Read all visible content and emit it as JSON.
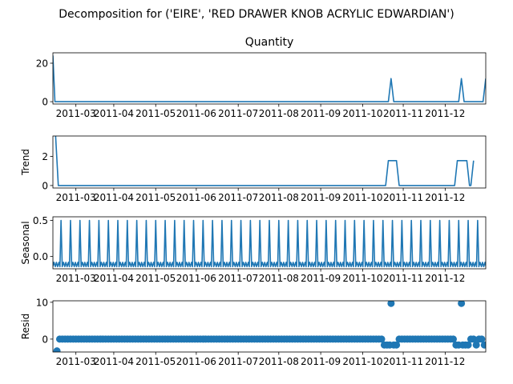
{
  "colors": {
    "series": "#1f77b4",
    "axis": "#000000",
    "background": "#ffffff"
  },
  "chart_data": {
    "type": "decomposition",
    "suptitle": "Decomposition for ('EIRE', 'RED DRAWER KNOB ACRYLIC EDWARDIAN')",
    "x_tick_labels": [
      "2011-03",
      "2011-04",
      "2011-05",
      "2011-06",
      "2011-07",
      "2011-08",
      "2011-09",
      "2011-10",
      "2011-11",
      "2011-12"
    ],
    "x_range_days": [
      0,
      320
    ],
    "x_tick_days": [
      17,
      45,
      76,
      106,
      137,
      167,
      198,
      229,
      259,
      290
    ],
    "panels": [
      {
        "name": "observed",
        "type": "line",
        "title": "Quantity",
        "ylabel": "",
        "ylim": [
          -1.2,
          25.4
        ],
        "yticks": [
          0,
          20
        ],
        "points": [
          [
            0,
            24
          ],
          [
            1.5,
            0
          ],
          [
            248,
            0
          ],
          [
            250,
            12
          ],
          [
            252,
            0
          ],
          [
            300,
            0
          ],
          [
            302,
            12
          ],
          [
            304,
            0
          ],
          [
            318,
            0
          ],
          [
            320,
            12
          ]
        ]
      },
      {
        "name": "trend",
        "type": "line",
        "title": "",
        "ylabel": "Trend",
        "ylim": [
          -0.17,
          3.4
        ],
        "yticks": [
          0,
          2
        ],
        "points": [
          [
            2,
            3.4
          ],
          [
            4,
            0
          ],
          [
            246,
            0
          ],
          [
            248,
            1.71
          ],
          [
            254,
            1.71
          ],
          [
            256,
            0
          ],
          [
            297,
            0
          ],
          [
            299,
            1.71
          ],
          [
            306,
            1.71
          ],
          [
            308,
            0
          ],
          [
            309,
            0
          ],
          [
            311,
            1.71
          ]
        ]
      },
      {
        "name": "seasonal",
        "type": "seasonal",
        "title": "",
        "ylabel": "Seasonal",
        "ylim": [
          -0.17,
          0.55
        ],
        "yticks": [
          0.0,
          0.5
        ],
        "ytick_labels": [
          "0.0",
          "0.5"
        ],
        "period_days": 7,
        "first_peak_day": 6,
        "peak": 0.5,
        "base": -0.08,
        "trough": -0.14
      },
      {
        "name": "resid",
        "type": "scatter",
        "title": "",
        "ylabel": "Resid",
        "ylim": [
          -3.5,
          10.4
        ],
        "yticks": [
          0,
          10
        ],
        "points": [
          [
            3,
            -3.2
          ],
          [
            5,
            0
          ],
          [
            7,
            0
          ],
          [
            9,
            0
          ],
          [
            11,
            0
          ],
          [
            13,
            0
          ],
          [
            15,
            0
          ],
          [
            17,
            0
          ],
          [
            19,
            0
          ],
          [
            21,
            0
          ],
          [
            23,
            0
          ],
          [
            25,
            0
          ],
          [
            27,
            0
          ],
          [
            29,
            0
          ],
          [
            31,
            0
          ],
          [
            33,
            0
          ],
          [
            35,
            0
          ],
          [
            37,
            0
          ],
          [
            39,
            0
          ],
          [
            41,
            0
          ],
          [
            43,
            0
          ],
          [
            45,
            0
          ],
          [
            47,
            0
          ],
          [
            49,
            0
          ],
          [
            51,
            0
          ],
          [
            53,
            0
          ],
          [
            55,
            0
          ],
          [
            57,
            0
          ],
          [
            59,
            0
          ],
          [
            61,
            0
          ],
          [
            63,
            0
          ],
          [
            65,
            0
          ],
          [
            67,
            0
          ],
          [
            69,
            0
          ],
          [
            71,
            0
          ],
          [
            73,
            0
          ],
          [
            75,
            0
          ],
          [
            77,
            0
          ],
          [
            79,
            0
          ],
          [
            81,
            0
          ],
          [
            83,
            0
          ],
          [
            85,
            0
          ],
          [
            87,
            0
          ],
          [
            89,
            0
          ],
          [
            91,
            0
          ],
          [
            93,
            0
          ],
          [
            95,
            0
          ],
          [
            97,
            0
          ],
          [
            99,
            0
          ],
          [
            101,
            0
          ],
          [
            103,
            0
          ],
          [
            105,
            0
          ],
          [
            107,
            0
          ],
          [
            109,
            0
          ],
          [
            111,
            0
          ],
          [
            113,
            0
          ],
          [
            115,
            0
          ],
          [
            117,
            0
          ],
          [
            119,
            0
          ],
          [
            121,
            0
          ],
          [
            123,
            0
          ],
          [
            125,
            0
          ],
          [
            127,
            0
          ],
          [
            129,
            0
          ],
          [
            131,
            0
          ],
          [
            133,
            0
          ],
          [
            135,
            0
          ],
          [
            137,
            0
          ],
          [
            139,
            0
          ],
          [
            141,
            0
          ],
          [
            143,
            0
          ],
          [
            145,
            0
          ],
          [
            147,
            0
          ],
          [
            149,
            0
          ],
          [
            151,
            0
          ],
          [
            153,
            0
          ],
          [
            155,
            0
          ],
          [
            157,
            0
          ],
          [
            159,
            0
          ],
          [
            161,
            0
          ],
          [
            163,
            0
          ],
          [
            165,
            0
          ],
          [
            167,
            0
          ],
          [
            169,
            0
          ],
          [
            171,
            0
          ],
          [
            173,
            0
          ],
          [
            175,
            0
          ],
          [
            177,
            0
          ],
          [
            179,
            0
          ],
          [
            181,
            0
          ],
          [
            183,
            0
          ],
          [
            185,
            0
          ],
          [
            187,
            0
          ],
          [
            189,
            0
          ],
          [
            191,
            0
          ],
          [
            193,
            0
          ],
          [
            195,
            0
          ],
          [
            197,
            0
          ],
          [
            199,
            0
          ],
          [
            201,
            0
          ],
          [
            203,
            0
          ],
          [
            205,
            0
          ],
          [
            207,
            0
          ],
          [
            209,
            0
          ],
          [
            211,
            0
          ],
          [
            213,
            0
          ],
          [
            215,
            0
          ],
          [
            217,
            0
          ],
          [
            219,
            0
          ],
          [
            221,
            0
          ],
          [
            223,
            0
          ],
          [
            225,
            0
          ],
          [
            227,
            0
          ],
          [
            229,
            0
          ],
          [
            231,
            0
          ],
          [
            233,
            0
          ],
          [
            235,
            0
          ],
          [
            237,
            0
          ],
          [
            239,
            0
          ],
          [
            241,
            0
          ],
          [
            243,
            0
          ],
          [
            245,
            -1.6
          ],
          [
            247,
            -1.6
          ],
          [
            249,
            -1.6
          ],
          [
            250,
            9.7
          ],
          [
            252,
            -1.6
          ],
          [
            254,
            -1.6
          ],
          [
            256,
            0
          ],
          [
            258,
            0
          ],
          [
            260,
            0
          ],
          [
            262,
            0
          ],
          [
            264,
            0
          ],
          [
            266,
            0
          ],
          [
            268,
            0
          ],
          [
            270,
            0
          ],
          [
            272,
            0
          ],
          [
            274,
            0
          ],
          [
            276,
            0
          ],
          [
            278,
            0
          ],
          [
            280,
            0
          ],
          [
            282,
            0
          ],
          [
            284,
            0
          ],
          [
            286,
            0
          ],
          [
            288,
            0
          ],
          [
            290,
            0
          ],
          [
            292,
            0
          ],
          [
            294,
            0
          ],
          [
            296,
            0
          ],
          [
            298,
            -1.6
          ],
          [
            300,
            -1.6
          ],
          [
            302,
            9.7
          ],
          [
            303,
            -1.6
          ],
          [
            305,
            -1.6
          ],
          [
            307,
            -1.6
          ],
          [
            309,
            0
          ],
          [
            311,
            0
          ],
          [
            313,
            -1.6
          ],
          [
            315,
            0
          ],
          [
            317,
            0
          ],
          [
            319,
            -1.6
          ]
        ]
      }
    ]
  }
}
